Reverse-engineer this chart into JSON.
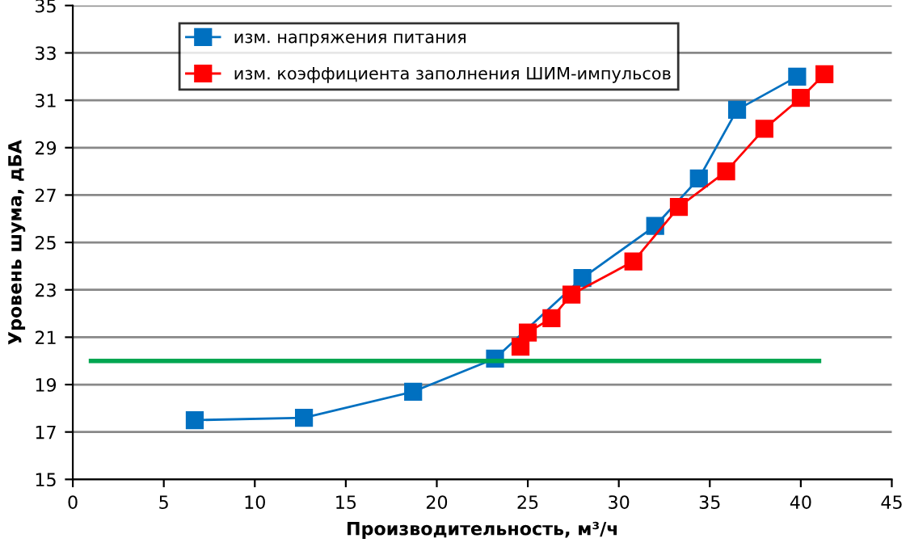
{
  "chart_data": {
    "type": "line",
    "xlabel": "Производительность, м³/ч",
    "ylabel": "Уровень шума, дБА",
    "xlim": [
      0,
      45
    ],
    "xticks": [
      0,
      5,
      10,
      15,
      20,
      25,
      30,
      35,
      40,
      45
    ],
    "ylim": [
      15,
      35
    ],
    "yticks": [
      15,
      17,
      19,
      21,
      23,
      25,
      27,
      29,
      31,
      33,
      35
    ],
    "grid": "y",
    "legend": "top left",
    "marker": "square",
    "series": [
      {
        "name": "изм. напряжения питания",
        "color": "#0070c0",
        "x": [
          6.7,
          12.7,
          18.7,
          23.2,
          28,
          32,
          34.4,
          36.5,
          39.8
        ],
        "values": [
          17.5,
          17.6,
          18.7,
          20.1,
          23.5,
          25.7,
          27.7,
          30.6,
          32
        ]
      },
      {
        "name": "изм. коэффициента заполнения ШИМ-импульсов",
        "color": "#ff0000",
        "x": [
          24.6,
          25,
          26.3,
          27.4,
          30.8,
          33.3,
          35.9,
          38,
          40,
          41.3
        ],
        "values": [
          20.6,
          21.2,
          21.8,
          22.8,
          24.2,
          26.5,
          28,
          29.8,
          31.1,
          32.1
        ]
      },
      {
        "color": "#00a651",
        "x": [
          1,
          41
        ],
        "values": [
          20,
          20
        ],
        "marker": "none"
      }
    ]
  }
}
